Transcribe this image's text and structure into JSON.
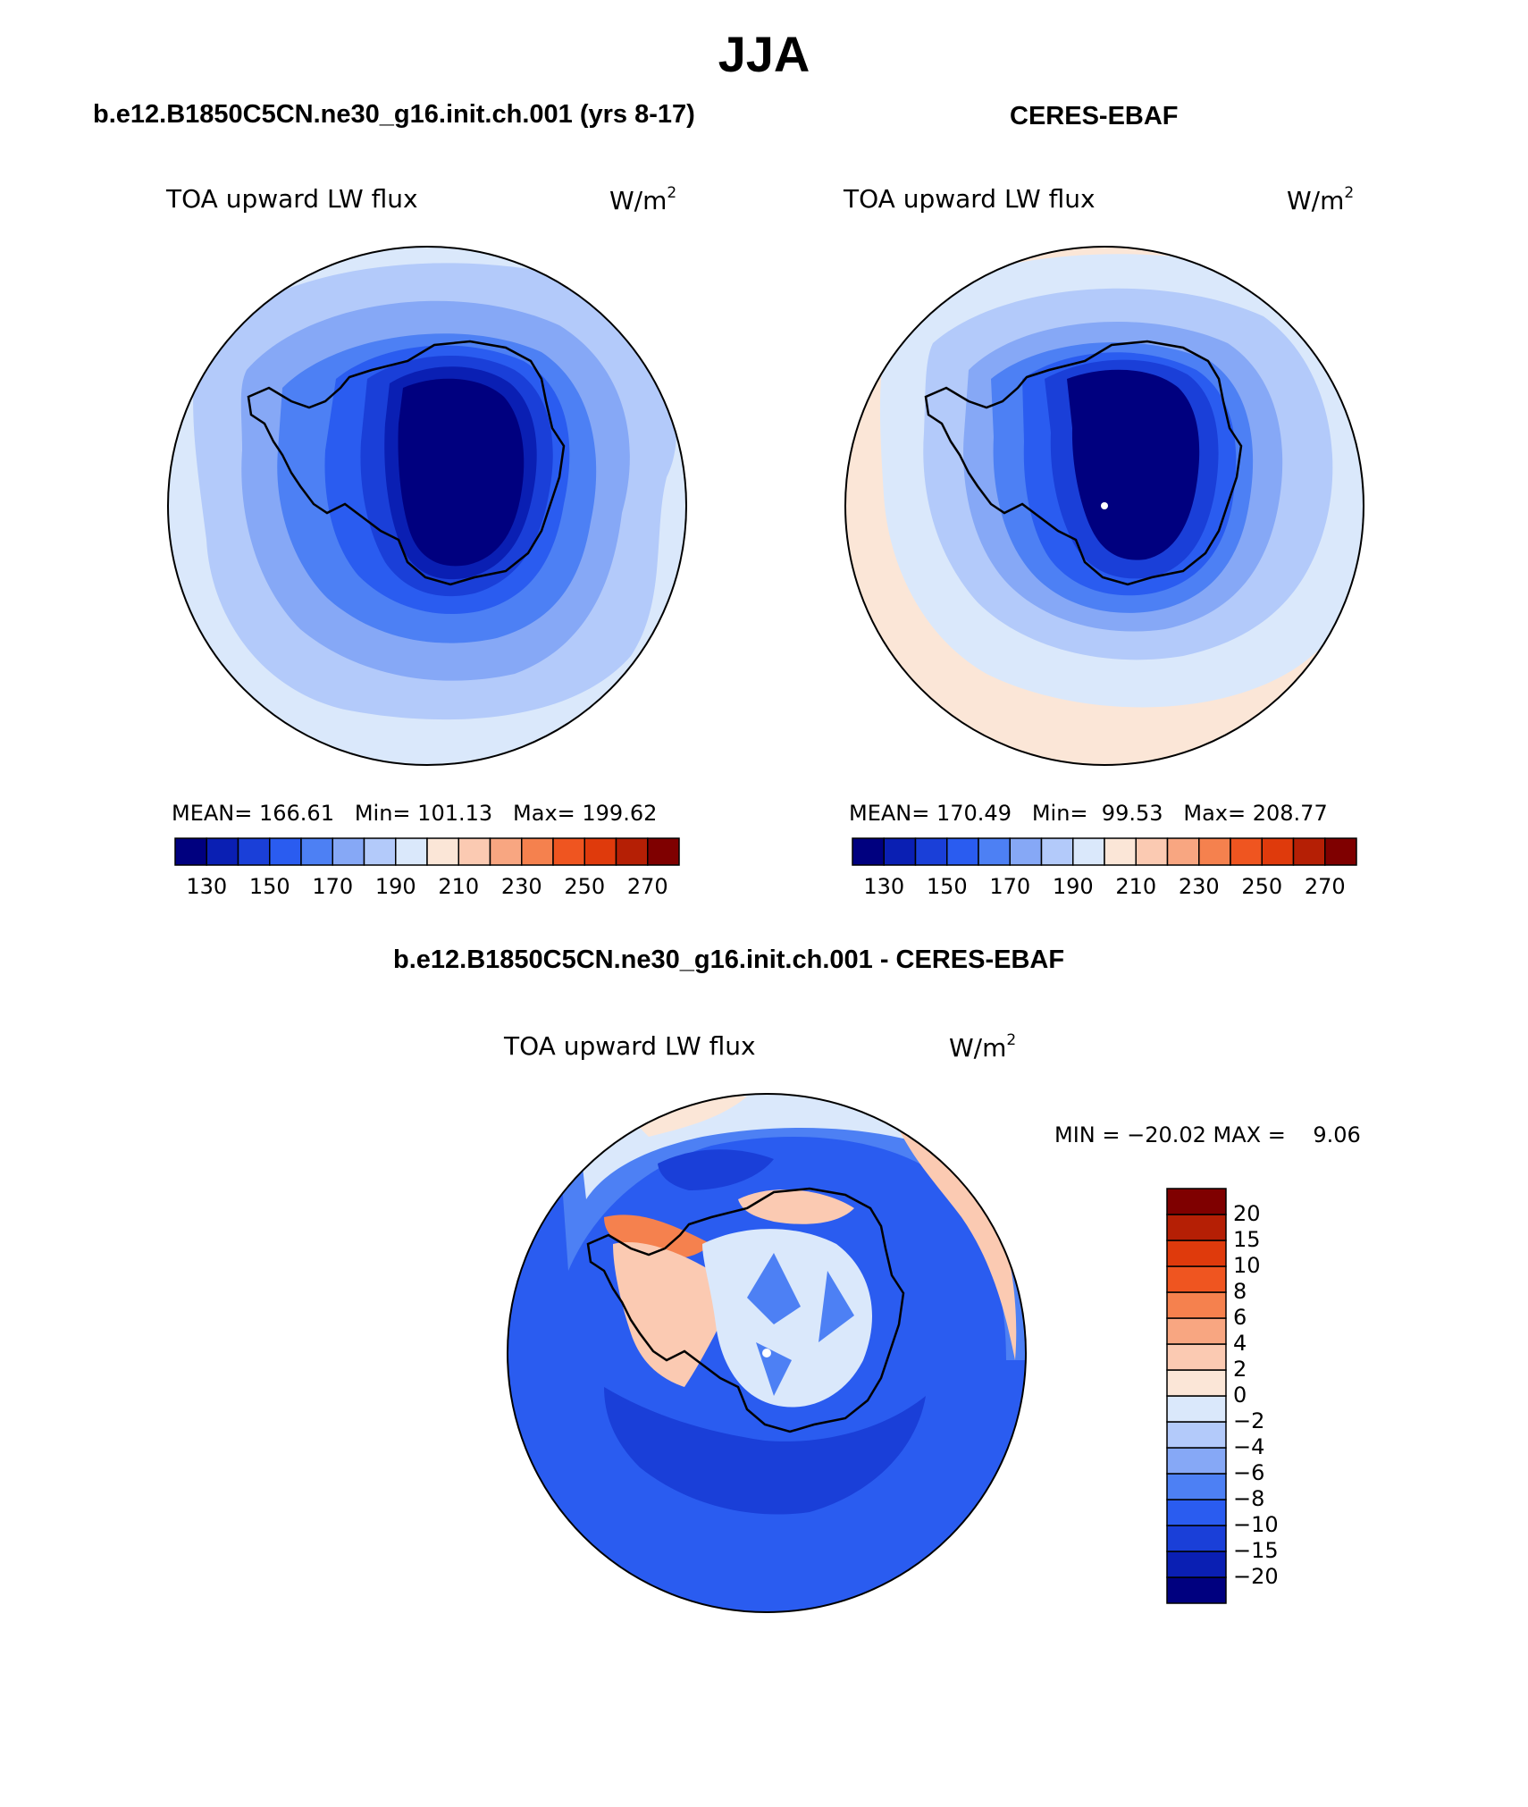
{
  "figure": {
    "title": "JJA",
    "colors": [
      "#00007f",
      "#0a1fb3",
      "#1a3fd8",
      "#2a5cf0",
      "#4d80f4",
      "#86a8f6",
      "#b3cafa",
      "#dae8fb",
      "#fbe6d7",
      "#fbcab2",
      "#f8a681",
      "#f5814e",
      "#ef5520",
      "#df3a0c",
      "#b51f05",
      "#7f0000"
    ]
  },
  "panels": [
    {
      "case": "b.e12.B1850C5CN.ne30_g16.init.ch.001 (yrs 8-17)",
      "variable": "TOA upward LW flux",
      "units": "W/m",
      "units_sup": "2",
      "stats_line": "MEAN= 166.61   Min= 101.13   Max= 199.62"
    },
    {
      "case": "CERES-EBAF",
      "variable": "TOA upward LW flux",
      "units": "W/m",
      "units_sup": "2",
      "stats_line": "MEAN= 170.49   Min=  99.53   Max= 208.77"
    },
    {
      "case": "b.e12.B1850C5CN.ne30_g16.init.ch.001 - CERES-EBAF",
      "variable": "TOA upward LW flux",
      "units": "W/m",
      "units_sup": "2",
      "stats_line": "MIN = −20.02 MAX =    9.06"
    }
  ],
  "chart_data": [
    {
      "type": "heatmap",
      "projection": "south polar stereographic",
      "title": "TOA upward LW flux",
      "subtitle": "b.e12.B1850C5CN.ne30_g16.init.ch.001 (yrs 8-17)",
      "units": "W/m2",
      "stats": {
        "mean": 166.61,
        "min": 101.13,
        "max": 199.62
      },
      "contour_levels": [
        130,
        140,
        150,
        160,
        170,
        180,
        190,
        200,
        210,
        220,
        230,
        240,
        250,
        260,
        270
      ],
      "colorbar_tick_labels": [
        "130",
        "150",
        "170",
        "190",
        "210",
        "230",
        "250",
        "270"
      ]
    },
    {
      "type": "heatmap",
      "projection": "south polar stereographic",
      "title": "TOA upward LW flux",
      "subtitle": "CERES-EBAF",
      "units": "W/m2",
      "stats": {
        "mean": 170.49,
        "min": 99.53,
        "max": 208.77
      },
      "contour_levels": [
        130,
        140,
        150,
        160,
        170,
        180,
        190,
        200,
        210,
        220,
        230,
        240,
        250,
        260,
        270
      ],
      "colorbar_tick_labels": [
        "130",
        "150",
        "170",
        "190",
        "210",
        "230",
        "250",
        "270"
      ]
    },
    {
      "type": "heatmap",
      "projection": "south polar stereographic",
      "title": "TOA upward LW flux",
      "subtitle": "b.e12.B1850C5CN.ne30_g16.init.ch.001 - CERES-EBAF",
      "units": "W/m2",
      "stats": {
        "min": -20.02,
        "max": 9.06
      },
      "contour_levels": [
        -20,
        -15,
        -10,
        -8,
        -6,
        -4,
        -2,
        0,
        2,
        4,
        6,
        8,
        10,
        15,
        20
      ],
      "colorbar_tick_labels": [
        "20",
        "15",
        "10",
        "8",
        "6",
        "4",
        "2",
        "0",
        "−2",
        "−4",
        "−6",
        "−8",
        "−10",
        "−15",
        "−20"
      ]
    }
  ]
}
